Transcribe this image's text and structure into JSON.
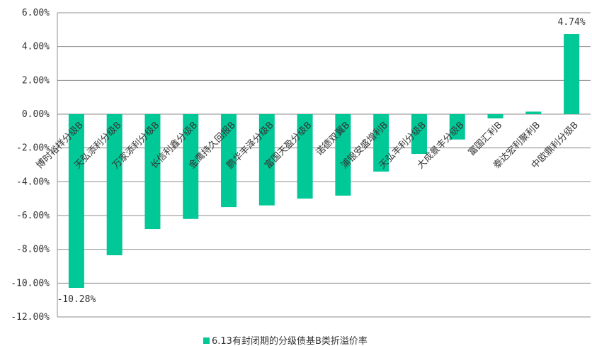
{
  "chart_data": {
    "type": "bar",
    "categories": [
      "博时裕祥分级B",
      "天弘添利分级B",
      "万家添利分级B",
      "长信利鑫分级B",
      "金鹰持久回报B",
      "鹏华丰泽分级B",
      "富国天盈分级B",
      "诺德双翼B",
      "浦银安盛增利B",
      "天弘丰利分级B",
      "大成景丰分级B",
      "富国汇利B",
      "泰达宏利聚利B",
      "中欧鼎利分级B"
    ],
    "series": [
      {
        "name": "6.13有封闭期的分级债基B类折溢价率",
        "values": [
          -10.28,
          -8.35,
          -6.8,
          -6.2,
          -5.5,
          -5.4,
          -5.0,
          -4.82,
          -3.4,
          -2.35,
          -1.5,
          -0.25,
          0.15,
          4.74
        ]
      }
    ],
    "data_labels": [
      "-10.28%",
      "",
      "",
      "",
      "",
      "",
      "",
      "",
      "",
      "",
      "",
      "",
      "",
      "4.74%"
    ],
    "y_ticks": [
      6,
      4,
      2,
      0,
      -2,
      -4,
      -6,
      -8,
      -10,
      -12
    ],
    "y_tick_labels": [
      "6.00%",
      "4.00%",
      "2.00%",
      "0.00%",
      "-2.00%",
      "-4.00%",
      "-6.00%",
      "-8.00%",
      "-10.00%",
      "-12.00%"
    ],
    "ylim": [
      -12,
      6
    ],
    "grid": true,
    "legend_position": "bottom",
    "colors": {
      "bar": "#00c896",
      "grid": "#8c8c8c",
      "text": "#333333"
    }
  }
}
